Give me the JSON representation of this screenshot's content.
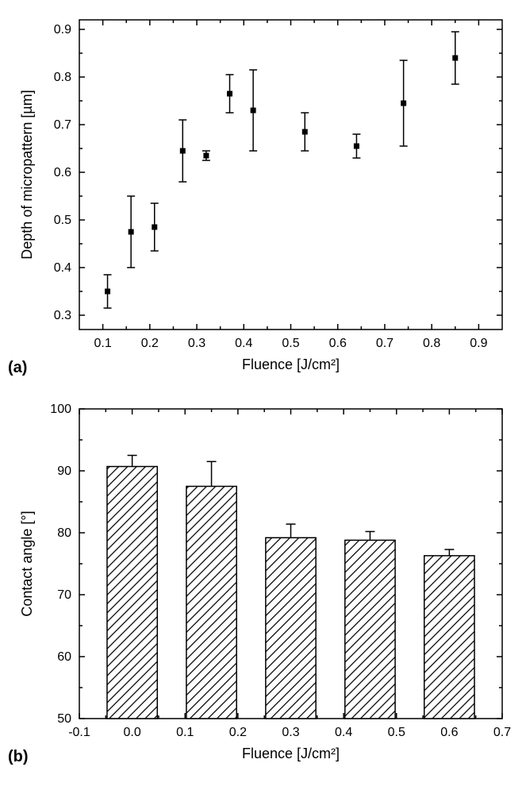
{
  "panel_a": {
    "type": "scatter",
    "label": "(a)",
    "label_fontsize": 20,
    "xlabel": "Fluence [J/cm²]",
    "ylabel": "Depth of micropattern [µm]",
    "axis_label_fontsize": 18,
    "tick_fontsize": 16,
    "xlim": [
      0.05,
      0.95
    ],
    "ylim": [
      0.27,
      0.92
    ],
    "xticks": [
      0.1,
      0.2,
      0.3,
      0.4,
      0.5,
      0.6,
      0.7,
      0.8,
      0.9
    ],
    "yticks": [
      0.3,
      0.4,
      0.5,
      0.6,
      0.7,
      0.8,
      0.9
    ],
    "marker_size": 7,
    "marker_color": "#000000",
    "errorbar_color": "#000000",
    "errorbar_capwidth": 10,
    "background_color": "#ffffff",
    "data": [
      {
        "x": 0.11,
        "y": 0.35,
        "err": 0.035
      },
      {
        "x": 0.16,
        "y": 0.475,
        "err": 0.075
      },
      {
        "x": 0.21,
        "y": 0.485,
        "err": 0.05
      },
      {
        "x": 0.27,
        "y": 0.645,
        "err": 0.065
      },
      {
        "x": 0.32,
        "y": 0.635,
        "err": 0.01
      },
      {
        "x": 0.37,
        "y": 0.765,
        "err": 0.04
      },
      {
        "x": 0.42,
        "y": 0.73,
        "err": 0.085
      },
      {
        "x": 0.53,
        "y": 0.685,
        "err": 0.04
      },
      {
        "x": 0.64,
        "y": 0.655,
        "err": 0.025
      },
      {
        "x": 0.74,
        "y": 0.745,
        "err": 0.09
      },
      {
        "x": 0.85,
        "y": 0.84,
        "err": 0.055
      }
    ]
  },
  "panel_b": {
    "type": "bar",
    "label": "(b)",
    "label_fontsize": 20,
    "xlabel": "Fluence [J/cm²]",
    "ylabel": "Contact angle [°]",
    "axis_label_fontsize": 18,
    "tick_fontsize": 16,
    "xlim": [
      -0.1,
      0.7
    ],
    "ylim": [
      50,
      100
    ],
    "xticks": [
      -0.1,
      0.0,
      0.1,
      0.2,
      0.3,
      0.4,
      0.5,
      0.6,
      0.7
    ],
    "yticks": [
      50,
      60,
      70,
      80,
      90,
      100
    ],
    "bar_width": 0.095,
    "bar_fill": "hatch",
    "bar_stroke": "#000000",
    "hatch_color": "#000000",
    "hatch_spacing": 6,
    "errorbar_color": "#000000",
    "errorbar_capwidth": 12,
    "background_color": "#ffffff",
    "data": [
      {
        "x": 0.0,
        "y": 90.7,
        "err": 1.8
      },
      {
        "x": 0.15,
        "y": 87.5,
        "err": 4.0
      },
      {
        "x": 0.3,
        "y": 79.2,
        "err": 2.2
      },
      {
        "x": 0.45,
        "y": 78.8,
        "err": 1.4
      },
      {
        "x": 0.6,
        "y": 76.3,
        "err": 1.0
      }
    ]
  }
}
